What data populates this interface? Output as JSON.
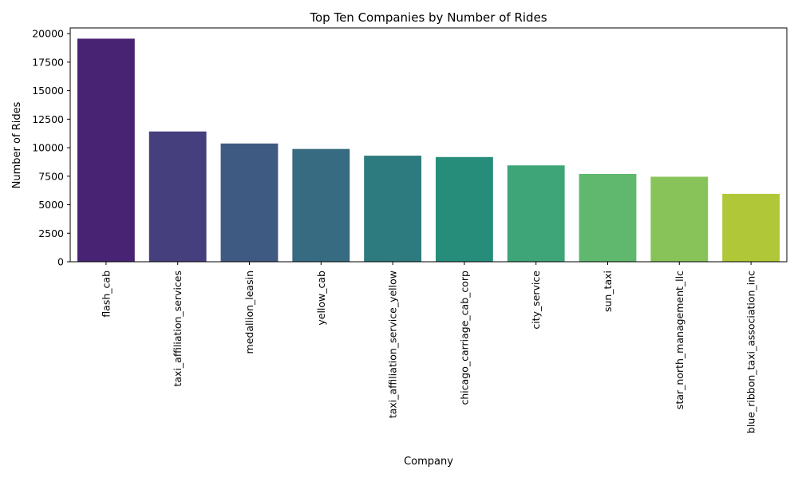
{
  "chart_data": {
    "type": "bar",
    "title": "Top Ten Companies by Number of Rides",
    "xlabel": "Company",
    "ylabel": "Number of Rides",
    "categories": [
      "flash_cab",
      "taxi_affiliation_services",
      "medallion_leasin",
      "yellow_cab",
      "taxi_affiliation_service_yellow",
      "chicago_carriage_cab_corp",
      "city_service",
      "sun_taxi",
      "star_north_management_llc",
      "blue_ribbon_taxi_association_inc"
    ],
    "values": [
      19558,
      11422,
      10367,
      9888,
      9299,
      9181,
      8448,
      7701,
      7455,
      5953
    ],
    "colors": [
      "#482374",
      "#453f7d",
      "#3f5a82",
      "#366b81",
      "#2e7b7f",
      "#268d7b",
      "#3ea579",
      "#5fb86e",
      "#88c35a",
      "#b0c738"
    ],
    "ylim": [
      0,
      20500
    ],
    "yticks": [
      0,
      2500,
      5000,
      7500,
      10000,
      12500,
      15000,
      17500,
      20000
    ],
    "grid": false,
    "legend": "none"
  }
}
